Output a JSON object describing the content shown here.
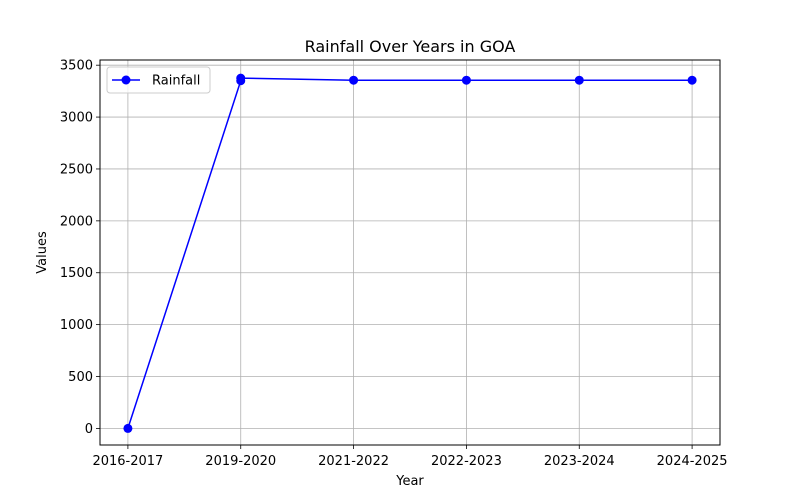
{
  "chart_data": {
    "type": "line",
    "title": "Rainfall Over Years in GOA",
    "xlabel": "Year",
    "ylabel": "Values",
    "categories": [
      "2016-2017",
      "2019-2020",
      "2019-2020",
      "2021-2022",
      "2022-2023",
      "2023-2024",
      "2024-2025"
    ],
    "x_ticks": [
      "2016-2017",
      "2019-2020",
      "2021-2022",
      "2022-2023",
      "2023-2024",
      "2024-2025"
    ],
    "y_ticks": [
      0,
      500,
      1000,
      1500,
      2000,
      2500,
      3000,
      3500
    ],
    "ylim": [
      -160,
      3550
    ],
    "grid": true,
    "legend_position": "top-left",
    "series": [
      {
        "name": "Rainfall",
        "color": "#0000ff",
        "marker": "circle",
        "points": [
          {
            "x": "2016-2017",
            "y": 0
          },
          {
            "x": "2019-2020",
            "y": 3350
          },
          {
            "x": "2019-2020",
            "y": 3375
          },
          {
            "x": "2021-2022",
            "y": 3355
          },
          {
            "x": "2022-2023",
            "y": 3355
          },
          {
            "x": "2023-2024",
            "y": 3355
          },
          {
            "x": "2024-2025",
            "y": 3355
          }
        ]
      }
    ]
  }
}
